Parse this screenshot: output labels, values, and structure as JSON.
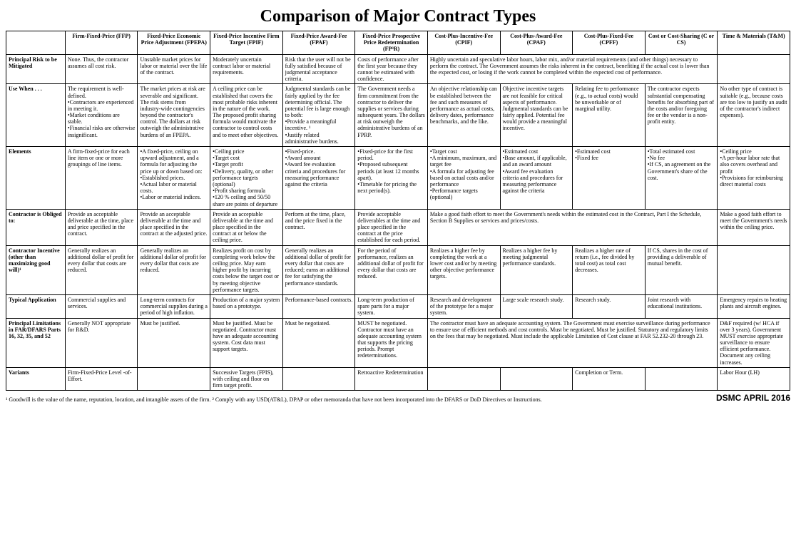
{
  "title": "Comparison of Major Contract Types",
  "columns": [
    "Firm-Fixed-Price (FFP)",
    "Fixed-Price Economic Price Adjustment (FPEPA)",
    "Fixed-Price Incentive Firm Target (FPIF)",
    "Fixed-Price Award-Fee (FPAF)",
    "Fixed-Price Prospective Price Redetermination (FP³R)",
    "Cost-Plus-Incentive-Fee (CPIF)",
    "Cost-Plus-Award-Fee (CPAF)",
    "Cost-Plus-Fixed-Fee (CPFF)",
    "Cost or Cost-Sharing (C or CS)",
    "Time & Materials (T&M)"
  ],
  "rows": [
    {
      "label": "Principal Risk to be Mitigated",
      "cells": [
        {
          "t": "None. Thus, the contractor assumes all cost risk."
        },
        {
          "t": "Unstable market prices for labor or material over the life of the contract."
        },
        {
          "t": "Moderately uncertain contract labor or material requirements."
        },
        {
          "t": "Risk that the user will not be fully satisfied because of judgmental acceptance criteria."
        },
        {
          "t": "Costs of performance after the first year because they cannot be estimated with confidence."
        },
        {
          "t": "Highly uncertain and speculative labor hours, labor mix, and/or material requirements (and other things) necessary to perform the contract. The Government assumes the risks inherent in the contract, benefiting if the actual cost is lower than the expected cost, or losing if the work cannot be completed within the expected cost of performance.",
          "span": 4
        },
        {
          "t": "—",
          "skip": true
        },
        {
          "t": "—",
          "skip": true
        },
        {
          "t": "—",
          "skip": true
        },
        {
          "t": ""
        }
      ]
    },
    {
      "label": "Use When . . .",
      "cells": [
        {
          "t": "The requirement is well-defined.\n•Contractors are experienced in meeting it.\n•Market conditions are stable.\n•Financial risks are otherwise insignificant."
        },
        {
          "t": "The market prices at risk are severable and significant. The risk stems from industry-wide contingencies beyond the contractor's control. The dollars at risk outweigh the administrative burdens of an FPEPA."
        },
        {
          "t": "A ceiling price can be established that covers the most probable risks inherent in the nature of the work. The proposed profit sharing formula would motivate the contractor to control costs and to meet other objectives."
        },
        {
          "t": "Judgmental standards can be fairly applied by the fee determining official. The potential fee is large enough to both:\n•Provide a meaningful incentive. ¹\n•Justify related administrative burdens."
        },
        {
          "t": "The Government needs a firm commitment from the contractor to deliver the supplies or services during subsequent years. The dollars at risk outweigh the administrative burdens of an FPRP."
        },
        {
          "t": "An objective relationship can be established between the fee and such measures of performance as actual costs, delivery dates, performance benchmarks, and the like."
        },
        {
          "t": "Objective incentive targets are not feasible for critical aspects of performance. Judgmental standards can be fairly applied. Potential fee would provide a meaningful incentive."
        },
        {
          "t": "Relating fee to performance (e.g., to actual costs) would be unworkable or of marginal utility."
        },
        {
          "t": "The contractor expects substantial compensating benefits for absorbing part of the costs and/or foregoing fee or the vendor is a non-profit entity."
        },
        {
          "t": "No other type of contract is suitable (e.g., because costs are too low to justify an audit of the contractor's indirect expenses)."
        }
      ]
    },
    {
      "label": "Elements",
      "cells": [
        {
          "t": "A firm-fixed-price for each line item or one or more groupings of line items."
        },
        {
          "t": "•A fixed-price, ceiling on upward adjustment, and a formula for adjusting the price up or down based on:\n•Established prices.\n•Actual labor or material costs.\n•Labor or material indices."
        },
        {
          "t": "•Ceiling price\n•Target cost\n•Target profit\n•Delivery, quality, or other performance targets (optional)\n•Profit sharing formula\n•120 % ceiling and 50/50 share are points of departure"
        },
        {
          "t": "•Fixed-price.\n•Award amount\n•Award fee evaluation criteria and procedures for measuring performance against the criteria"
        },
        {
          "t": "•Fixed-price for the first period.\n•Proposed subsequent periods (at least 12 months apart).\n•Timetable for pricing the next period(s)."
        },
        {
          "t": "•Target cost\n•A minimum, maximum, and target fee\n•A formula for adjusting fee based on actual costs and/or performance\n•Performance targets (optional)"
        },
        {
          "t": "•Estimated cost\n•Base amount, if applicable, and an award amount\n•Award fee evaluation criteria and procedures for measuring performance against the criteria"
        },
        {
          "t": "•Estimated cost\n•Fixed fee"
        },
        {
          "t": "•Total estimated cost\n•No fee\n•If CS, an agreement on the Government's share of the cost."
        },
        {
          "t": "•Ceiling price\n•A per-hour labor rate that also covers overhead and profit\n•Provisions for reimbursing direct material costs"
        }
      ]
    },
    {
      "label": "Contractor is Obliged to:",
      "cells": [
        {
          "t": "Provide an acceptable deliverable at the time, place and price specified in the contract."
        },
        {
          "t": "Provide an acceptable deliverable at the time and place specified in the contract at the adjusted price."
        },
        {
          "t": "Provide an acceptable deliverable at the time and place specified in the contract at or below the ceiling price."
        },
        {
          "t": "Perform at the time, place, and the price fixed in the contract."
        },
        {
          "t": "Provide acceptable deliverables at the time and place specified in the contract at the price established for each period."
        },
        {
          "t": "Make a good faith effort to meet the Government's needs within the estimated cost in the Contract, Part I the Schedule, Section B Supplies or services and prices/costs.",
          "span": 4
        },
        {
          "t": "—",
          "skip": true
        },
        {
          "t": "—",
          "skip": true
        },
        {
          "t": "—",
          "skip": true
        },
        {
          "t": "Make a good faith effort to meet the Government's needs within the ceiling price."
        }
      ]
    },
    {
      "label": "Contractor Incentive (other than maximizing good will)¹",
      "cells": [
        {
          "t": "Generally realizes an additional dollar of profit for every dollar that costs are reduced."
        },
        {
          "t": "Generally realizes an additional dollar of profit for every dollar that costs are reduced."
        },
        {
          "t": "Realizes profit on cost by completing work below the ceiling price. May earn higher profit by incurring costs below the target cost or by meeting objective performance targets."
        },
        {
          "t": "Generally realizes an additional dollar of profit for every dollar that costs are reduced; earns an additional fee for satisfying the performance standards."
        },
        {
          "t": "For the period of performance, realizes an additional dollar of profit for every dollar that costs are reduced."
        },
        {
          "t": "Realizes a higher fee by completing the work at a lower cost and/or by meeting other objective performance targets."
        },
        {
          "t": "Realizes a higher fee by meeting judgmental performance standards."
        },
        {
          "t": "Realizes a higher rate of return (i.e., fee divided by total cost) as total cost decreases."
        },
        {
          "t": "If CS, shares in the cost of providing a deliverable of mutual benefit."
        },
        {
          "t": ""
        }
      ]
    },
    {
      "label": "Typical Application",
      "cells": [
        {
          "t": "Commercial supplies and services."
        },
        {
          "t": "Long-term contracts for commercial supplies during a period of high inflation."
        },
        {
          "t": "Production of a major system based on a prototype."
        },
        {
          "t": "Performance-based contracts."
        },
        {
          "t": "Long-term production of spare parts for a major system."
        },
        {
          "t": "Research and development of the prototype for a major system."
        },
        {
          "t": "Large scale research study."
        },
        {
          "t": "Research study."
        },
        {
          "t": "Joint research with educational institutions."
        },
        {
          "t": "Emergency repairs to heating plants and aircraft engines."
        }
      ]
    },
    {
      "label": "Principal Limitations in FAR/DFARS Parts 16, 32, 35, and 52",
      "cells": [
        {
          "t": "Generally NOT appropriate for R&D."
        },
        {
          "t": "Must be justified."
        },
        {
          "t": "Must be justified. Must be negotiated. Contractor must have an adequate accounting system. Cost data must support targets."
        },
        {
          "t": "Must be negotiated."
        },
        {
          "t": "MUST be negotiated. Contractor must have an adequate accounting system that supports the pricing periods. Prompt redeterminations."
        },
        {
          "t": "The contractor must have an adequate accounting system. The Government must exercise surveillance during performance to ensure use of efficient methods and cost controls. Must be negotiated. Must be justified. Statutory and regulatory limits on the fees that may be negotiated. Must include the applicable Limitation of Cost clause at FAR 52.232-20 through 23.",
          "span": 4
        },
        {
          "t": "—",
          "skip": true
        },
        {
          "t": "—",
          "skip": true
        },
        {
          "t": "—",
          "skip": true
        },
        {
          "t": "D&F required (w/ HCA if over 3 years). Government MUST exercise appropriate surveillance to ensure efficient performance. Document any ceiling increases."
        }
      ]
    },
    {
      "label": "Variants",
      "cells": [
        {
          "t": "Firm-Fixed-Price Level -of-Effort."
        },
        {
          "t": ""
        },
        {
          "t": "Successive Targets (FPIS), with ceiling and floor on firm target profit."
        },
        {
          "t": ""
        },
        {
          "t": "Retroactive Redetermination"
        },
        {
          "t": ""
        },
        {
          "t": ""
        },
        {
          "t": "Completion or Term."
        },
        {
          "t": ""
        },
        {
          "t": "Labor Hour (LH)"
        }
      ]
    }
  ],
  "footnote_left": "¹ Goodwill is the value of the name, reputation, location, and intangible assets of the firm.    ² Comply with any USD(AT&L), DPAP or other memoranda that have not been incorporated into the DFARS or DoD Directives or Instructions.",
  "footnote_right": "DSMC APRIL 2016"
}
